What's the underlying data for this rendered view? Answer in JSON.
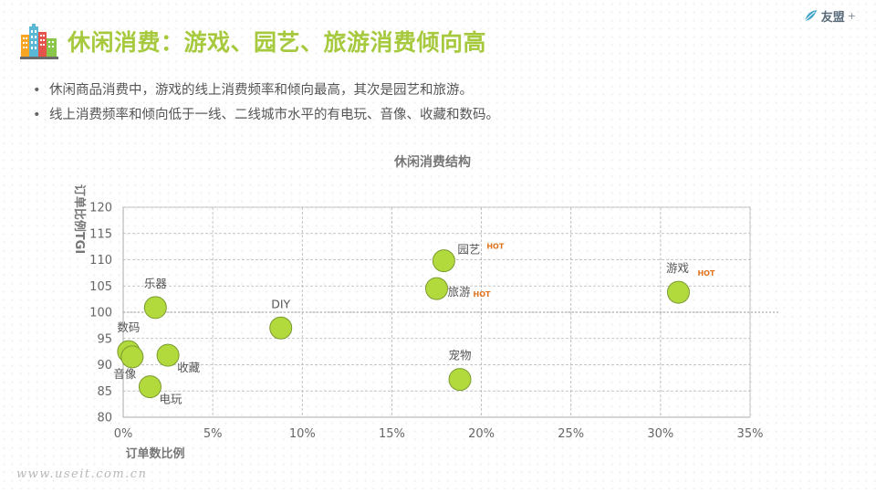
{
  "page": {
    "title": "休闲消费：游戏、园艺、旅游消费倾向高",
    "brand": "友盟",
    "brand_suffix": "+",
    "bullets": [
      "休闲商品消费中，游戏的线上消费频率和倾向最高，其次是园艺和旅游。",
      "线上消费频率和倾向低于一线、二线城市水平的有电玩、音像、收藏和数码。"
    ],
    "watermark": "www.useit.com.cn"
  },
  "colors": {
    "title": "#a6c93e",
    "bubble_fill": "#b3da3d",
    "bubble_stroke": "#7a9a2e",
    "grid": "#b5b5b5",
    "hot": "#e0741c",
    "text": "#555555"
  },
  "chart_data": {
    "type": "scatter",
    "title": "休闲消费结构",
    "xlabel": "订单数比例",
    "ylabel": "订单比例TGI",
    "xlim": [
      0,
      35
    ],
    "ylim": [
      80,
      120
    ],
    "x_ticks": [
      {
        "value": 0,
        "label": "0%"
      },
      {
        "value": 5,
        "label": "5%"
      },
      {
        "value": 10,
        "label": "10%"
      },
      {
        "value": 15,
        "label": "15%"
      },
      {
        "value": 20,
        "label": "20%"
      },
      {
        "value": 25,
        "label": "25%"
      },
      {
        "value": 30,
        "label": "30%"
      },
      {
        "value": 35,
        "label": "35%"
      }
    ],
    "y_ticks": [
      80,
      85,
      90,
      95,
      100,
      105,
      110,
      115,
      120
    ],
    "reference_line_y": 100,
    "hot_label": "HOT",
    "grid": true,
    "points": [
      {
        "name": "园艺",
        "x": 17.9,
        "y": 109.8,
        "hot": true,
        "label_pos": "right-top"
      },
      {
        "name": "游戏",
        "x": 31.0,
        "y": 103.8,
        "hot": true,
        "label_pos": "top"
      },
      {
        "name": "旅游",
        "x": 17.5,
        "y": 104.5,
        "hot": true,
        "label_pos": "right"
      },
      {
        "name": "乐器",
        "x": 1.8,
        "y": 100.9,
        "hot": false,
        "label_pos": "top"
      },
      {
        "name": "DIY",
        "x": 8.8,
        "y": 97.0,
        "hot": false,
        "label_pos": "top"
      },
      {
        "name": "数码",
        "x": 0.3,
        "y": 92.5,
        "hot": false,
        "label_pos": "top"
      },
      {
        "name": "音像",
        "x": 0.5,
        "y": 91.5,
        "hot": false,
        "label_pos": "left-bottom"
      },
      {
        "name": "收藏",
        "x": 2.5,
        "y": 91.8,
        "hot": false,
        "label_pos": "right-bottom"
      },
      {
        "name": "电玩",
        "x": 1.5,
        "y": 85.8,
        "hot": false,
        "label_pos": "right-bottom"
      },
      {
        "name": "宠物",
        "x": 18.8,
        "y": 87.2,
        "hot": false,
        "label_pos": "top"
      }
    ]
  }
}
